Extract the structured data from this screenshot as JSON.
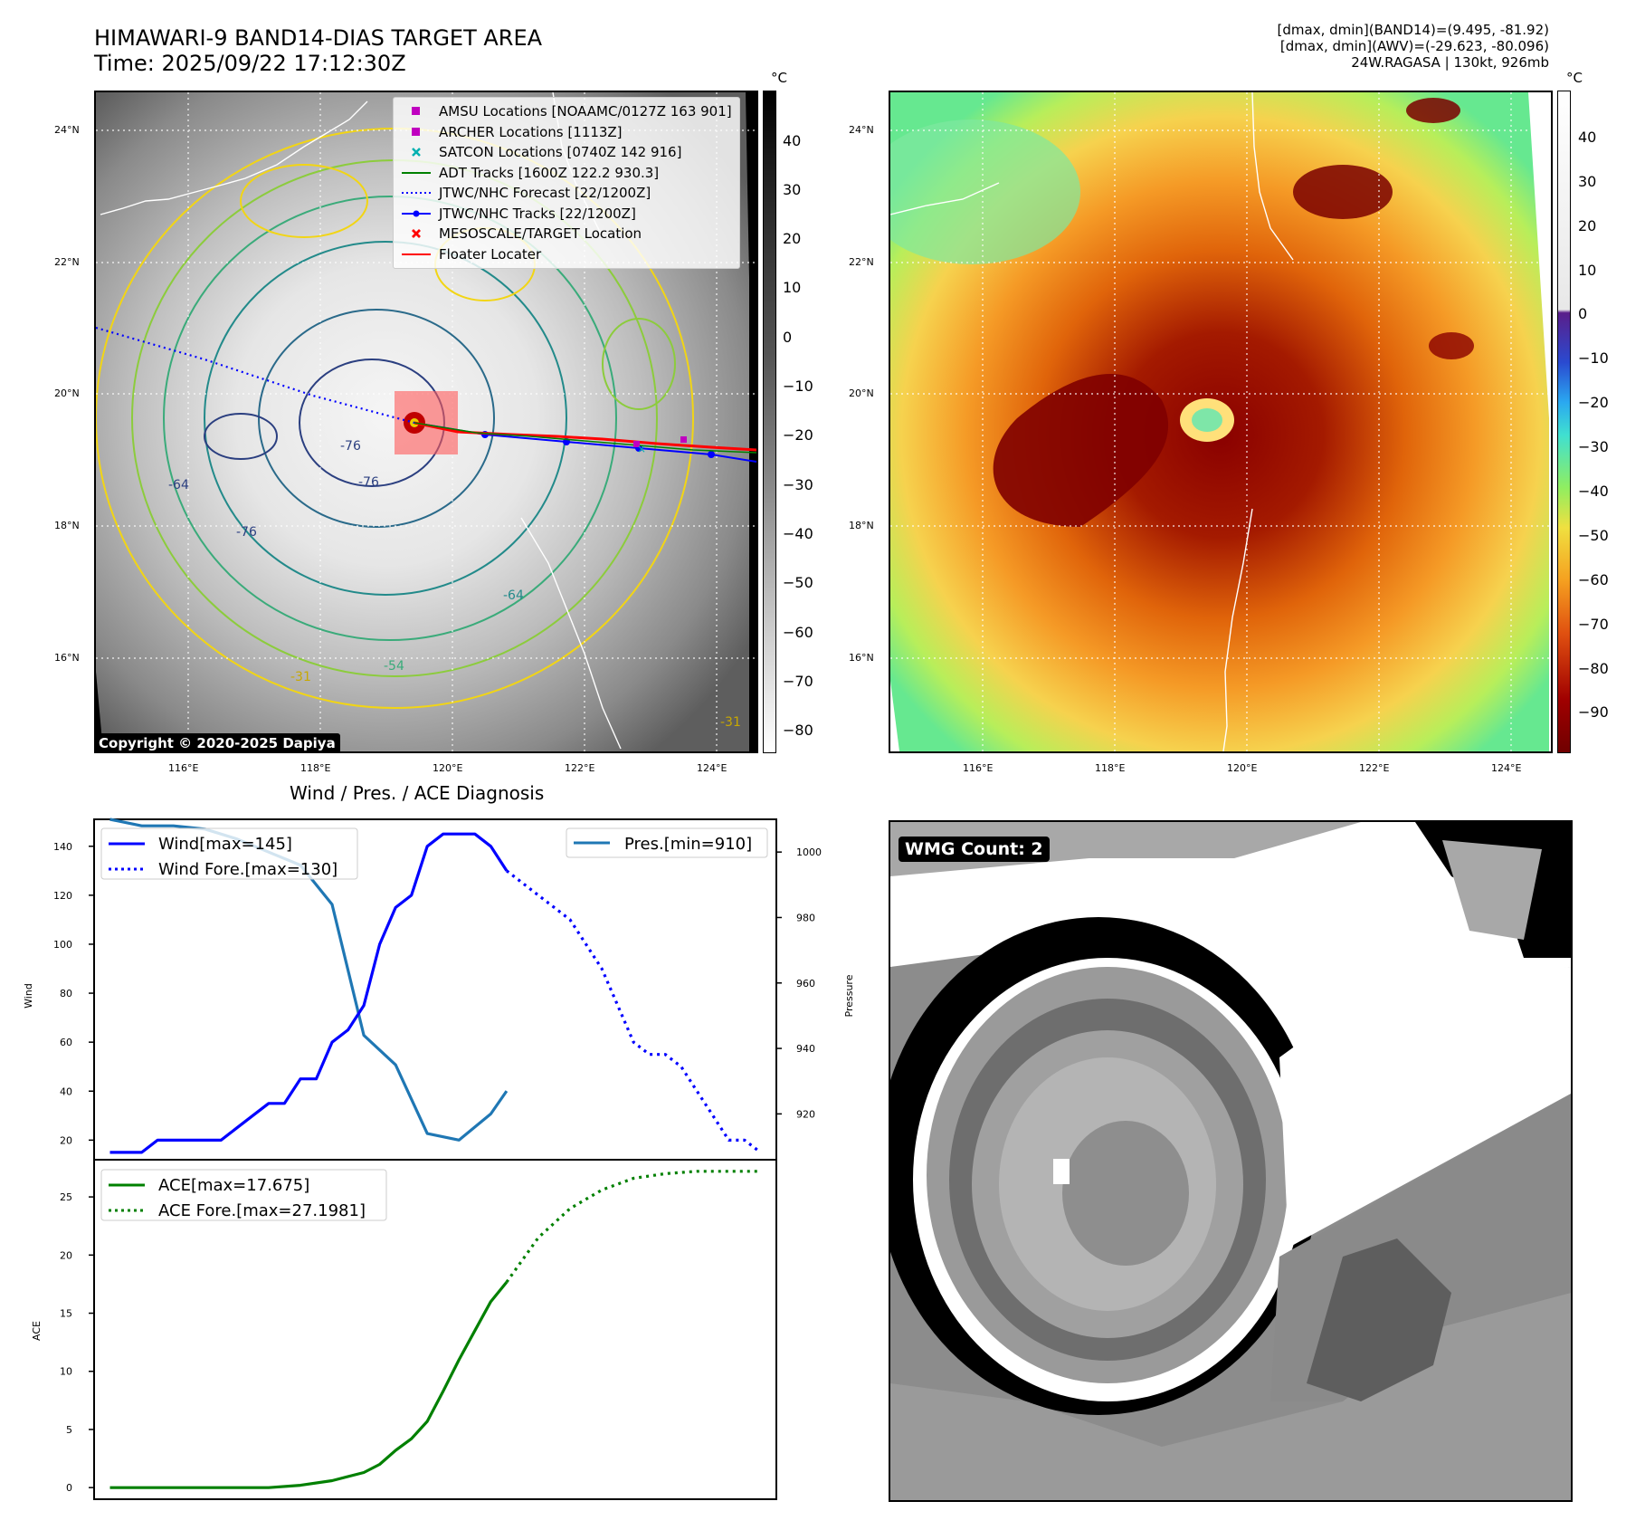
{
  "header": {
    "title_line1": "HIMAWARI-9 BAND14-DIAS TARGET AREA",
    "title_line2": "Time: 2025/09/22 17:12:30Z",
    "right_line1": "[dmax, dmin](BAND14)=(9.495, -81.92)",
    "right_line2": "[dmax, dmin](AWV)=(-29.623, -80.096)",
    "right_line3": "24W.RAGASA | 130kt, 926mb"
  },
  "maps": {
    "lat_labels": [
      "24°N",
      "22°N",
      "20°N",
      "18°N",
      "16°N"
    ],
    "lon_labels": [
      "116°E",
      "118°E",
      "120°E",
      "122°E",
      "124°E"
    ],
    "copyright": "Copyright © 2020-2025 Dapiya",
    "colorbar_unit": "°C",
    "ir_colorbar_ticks": [
      "40",
      "30",
      "20",
      "10",
      "0",
      "−10",
      "−20",
      "−30",
      "−40",
      "−50",
      "−60",
      "−70",
      "−80"
    ],
    "color_colorbar_ticks": [
      "40",
      "30",
      "20",
      "10",
      "0",
      "−10",
      "−20",
      "−30",
      "−40",
      "−50",
      "−60",
      "−70",
      "−80",
      "−90"
    ],
    "contour_labels": [
      "-76",
      "-76",
      "-64",
      "-76",
      "-54",
      "-64",
      "-31",
      "-31"
    ],
    "legend": [
      {
        "label": "AMSU Locations [NOAAMC/0127Z 163 901]",
        "icon": "magenta-square",
        "color": "#c000c0"
      },
      {
        "label": "ARCHER Locations [1113Z]",
        "icon": "magenta-square",
        "color": "#c000c0"
      },
      {
        "label": "SATCON Locations [0740Z 142 916]",
        "icon": "cyan-x",
        "color": "#00b0b0"
      },
      {
        "label": "ADT Tracks [1600Z 122.2 930.3]",
        "icon": "green-line",
        "color": "#008000"
      },
      {
        "label": "JTWC/NHC Forecast [22/1200Z]",
        "icon": "blue-dotted-line",
        "color": "#0000ff"
      },
      {
        "label": "JTWC/NHC Tracks [22/1200Z]",
        "icon": "blue-line-dot",
        "color": "#0000ff"
      },
      {
        "label": "MESOSCALE/TARGET Location",
        "icon": "red-x",
        "color": "#ff0000"
      },
      {
        "label": "Floater Locater",
        "icon": "red-line",
        "color": "#ff0000"
      }
    ]
  },
  "wmg": {
    "badge": "WMG Count: 2"
  },
  "chart_data": [
    {
      "type": "line",
      "title": "Wind / Pres. / ACE Diagnosis",
      "ylabel": "Wind",
      "ylabel_right": "Pressure",
      "ylim": [
        12,
        151
      ],
      "ylim_right": [
        906,
        1010
      ],
      "yticks": [
        20,
        40,
        60,
        80,
        100,
        120,
        140
      ],
      "yticks_right": [
        920,
        940,
        960,
        980,
        1000
      ],
      "grid": false,
      "legend_left": "upper-left",
      "legend_right": "upper-right",
      "series": [
        {
          "name": "Wind[max=145]",
          "axis": "left",
          "style": "solid",
          "color": "#0000ff",
          "x": [
            0,
            1,
            2,
            3,
            4,
            5,
            6,
            7,
            8,
            9,
            10,
            11,
            12,
            13,
            14,
            15,
            16,
            17,
            18,
            19,
            20,
            21,
            22,
            23,
            24,
            25
          ],
          "values": [
            15,
            15,
            15,
            20,
            20,
            20,
            20,
            20,
            25,
            30,
            35,
            35,
            45,
            45,
            60,
            65,
            75,
            100,
            115,
            120,
            140,
            145,
            145,
            145,
            140,
            130
          ]
        },
        {
          "name": "Wind Fore.[max=130]",
          "axis": "left",
          "style": "dotted",
          "color": "#0000ff",
          "x": [
            25,
            26,
            27,
            28,
            29,
            30,
            31,
            32,
            33,
            34,
            35,
            36,
            37,
            38,
            39,
            40,
            41
          ],
          "values": [
            130,
            125,
            120,
            115,
            110,
            100,
            90,
            75,
            60,
            55,
            55,
            50,
            40,
            30,
            20,
            20,
            15
          ]
        },
        {
          "name": "Pres.[min=910]",
          "axis": "right",
          "style": "solid",
          "color": "#1f77b4",
          "x": [
            0,
            2,
            4,
            6,
            8,
            10,
            12,
            14,
            16,
            18,
            20,
            22,
            24,
            25
          ],
          "values": [
            1010,
            1008,
            1008,
            1007,
            1004,
            1000,
            996,
            984,
            944,
            935,
            914,
            912,
            920,
            927
          ]
        }
      ]
    },
    {
      "type": "line",
      "ylabel": "ACE",
      "ylim": [
        -1,
        28.2
      ],
      "yticks": [
        0,
        5,
        10,
        15,
        20,
        25
      ],
      "grid": false,
      "legend": "upper-left",
      "series": [
        {
          "name": "ACE[max=17.675]",
          "style": "solid",
          "color": "#008000",
          "x": [
            0,
            2,
            4,
            6,
            8,
            10,
            12,
            14,
            16,
            17,
            18,
            19,
            20,
            21,
            22,
            23,
            24,
            25
          ],
          "values": [
            0,
            0,
            0,
            0,
            0,
            0,
            0.2,
            0.6,
            1.3,
            2.0,
            3.2,
            4.2,
            5.7,
            8.3,
            11.0,
            13.5,
            16.0,
            17.675
          ]
        },
        {
          "name": "ACE Fore.[max=27.1981]",
          "style": "dotted",
          "color": "#008000",
          "x": [
            25,
            27,
            29,
            31,
            33,
            35,
            37,
            39,
            41
          ],
          "values": [
            17.675,
            21.5,
            24.0,
            25.6,
            26.6,
            27.0,
            27.2,
            27.2,
            27.2
          ]
        }
      ]
    }
  ]
}
